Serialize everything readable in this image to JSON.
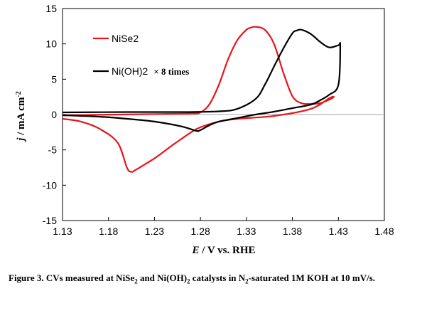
{
  "chart_data": {
    "type": "line",
    "title": "",
    "xlabel_symbol": "E",
    "xlabel_rest": " / V vs. RHE",
    "ylabel_symbol": "j",
    "ylabel_rest": " / mA cm",
    "ylabel_sup": "-2",
    "xlim": [
      1.13,
      1.48
    ],
    "ylim": [
      -15,
      15
    ],
    "xticks": [
      "1.13",
      "1.18",
      "1.23",
      "1.28",
      "1.33",
      "1.38",
      "1.43",
      "1.48"
    ],
    "yticks": [
      "-15",
      "-10",
      "-5",
      "0",
      "5",
      "10",
      "15"
    ],
    "grid": false,
    "zero_line": true,
    "legend_placement": "top-left",
    "series": [
      {
        "name": "NiSe2",
        "suffix": "",
        "color": "#e8141b",
        "x": [
          1.13,
          1.16,
          1.19,
          1.22,
          1.25,
          1.27,
          1.28,
          1.29,
          1.3,
          1.31,
          1.32,
          1.33,
          1.335,
          1.34,
          1.35,
          1.36,
          1.37,
          1.38,
          1.39,
          1.4,
          1.41,
          1.42,
          1.425,
          1.42,
          1.4,
          1.36,
          1.32,
          1.3,
          1.28,
          1.27,
          1.25,
          1.23,
          1.21,
          1.205,
          1.2,
          1.19,
          1.17,
          1.15,
          1.13
        ],
        "y": [
          -0.1,
          -0.05,
          0.0,
          0.05,
          0.1,
          0.15,
          0.3,
          1.5,
          4.2,
          7.8,
          10.5,
          12.0,
          12.3,
          12.4,
          12.0,
          10.0,
          6.0,
          2.6,
          1.6,
          1.5,
          1.6,
          2.1,
          2.5,
          2.3,
          0.8,
          -0.2,
          -0.6,
          -1.0,
          -1.8,
          -2.5,
          -4.3,
          -6.2,
          -7.8,
          -8.1,
          -7.5,
          -4.0,
          -2.0,
          -1.0,
          -0.6
        ]
      },
      {
        "name": "Ni(OH)2",
        "suffix": "× 8 times",
        "color": "#000000",
        "x": [
          1.13,
          1.2,
          1.26,
          1.3,
          1.32,
          1.34,
          1.35,
          1.36,
          1.37,
          1.38,
          1.385,
          1.39,
          1.4,
          1.41,
          1.42,
          1.43,
          1.432,
          1.43,
          1.42,
          1.41,
          1.4,
          1.38,
          1.36,
          1.34,
          1.32,
          1.3,
          1.29,
          1.28,
          1.275,
          1.26,
          1.23,
          1.2,
          1.17,
          1.13
        ],
        "y": [
          0.3,
          0.35,
          0.35,
          0.45,
          0.8,
          2.2,
          4.2,
          6.8,
          9.3,
          11.5,
          11.9,
          12.0,
          11.4,
          10.3,
          9.5,
          9.8,
          9.7,
          4.2,
          2.8,
          2.0,
          1.4,
          0.9,
          0.4,
          0.0,
          -0.5,
          -1.0,
          -1.5,
          -2.2,
          -2.3,
          -1.7,
          -1.0,
          -0.6,
          -0.3,
          -0.1
        ]
      }
    ]
  },
  "caption": {
    "label": "Figure 3",
    "p1": ". CVs measured at NiSe",
    "s1": "2",
    "p2": " and Ni(OH)",
    "s2": "2",
    "p3": " catalysts in N",
    "s3": "2",
    "p4": "-saturated 1M KOH at 10 mV/s."
  }
}
